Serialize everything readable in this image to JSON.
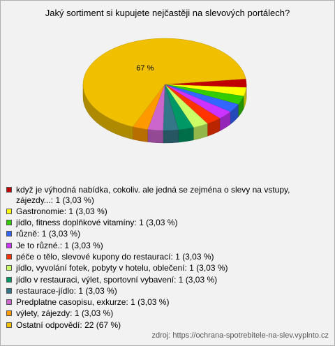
{
  "chart_data": {
    "type": "pie3d",
    "title": "Jaký sortiment si kupujete nejčastěji na slevových portálech?",
    "categories": [
      "když je výhodná nabídka, cokoliv. ale jedná se zejména o slevy na vstupy, zájezdy...:",
      "Gastronomie:",
      "jídlo, fitness doplňkové vitamíny:",
      "různě:",
      "Je to různé.:",
      "péče o tělo, slevové kupony do restaurací:",
      "jídlo, vyvolání fotek, pobyty v hotelu, oblečení:",
      "jídlo v restauraci, výlet, sportovní vybavení:",
      "restaurace-jídlo:",
      "Predplatne casopisu, exkurze:",
      "výlety, zájezdy:",
      "Ostatní odpovědí:"
    ],
    "values": [
      1,
      1,
      1,
      1,
      1,
      1,
      1,
      1,
      1,
      1,
      1,
      22
    ],
    "value_labels": [
      "1 (3,03 %)",
      "1 (3,03 %)",
      "1 (3,03 %)",
      "1 (3,03 %)",
      "1 (3,03 %)",
      "1 (3,03 %)",
      "1 (3,03 %)",
      "1 (3,03 %)",
      "1 (3,03 %)",
      "1 (3,03 %)",
      "1 (3,03 %)",
      "22 (67 %)"
    ],
    "data_labels": [
      null,
      null,
      null,
      null,
      null,
      null,
      null,
      null,
      null,
      null,
      null,
      "67 %"
    ],
    "colors": [
      "#c00000",
      "#ffff00",
      "#33cc00",
      "#3366ff",
      "#cc33ff",
      "#ff3300",
      "#ccff66",
      "#009966",
      "#337788",
      "#cc66cc",
      "#ff9900",
      "#f0c000"
    ],
    "source": "zdroj: https://ochrana-spotrebitele-na-slev.vyplnto.cz"
  }
}
